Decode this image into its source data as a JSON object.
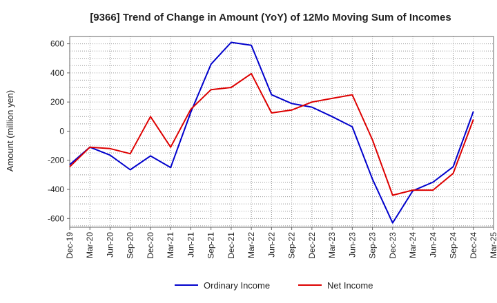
{
  "chart_data": {
    "type": "line",
    "title": "[9366]  Trend of Change in Amount (YoY) of 12Mo Moving Sum of Incomes",
    "xlabel": "",
    "ylabel": "Amount (million yen)",
    "ylim": [
      -660,
      650
    ],
    "yticks": [
      -600,
      -400,
      -200,
      0,
      200,
      400,
      600
    ],
    "categories": [
      "Dec-19",
      "Mar-20",
      "Jun-20",
      "Sep-20",
      "Dec-20",
      "Mar-21",
      "Jun-21",
      "Sep-21",
      "Dec-21",
      "Mar-22",
      "Jun-22",
      "Sep-22",
      "Dec-22",
      "Mar-23",
      "Jun-23",
      "Sep-23",
      "Dec-23",
      "Mar-24",
      "Jun-24",
      "Sep-24",
      "Dec-24",
      "Mar-25"
    ],
    "grid": true,
    "legend_position": "bottom",
    "series": [
      {
        "name": "Ordinary Income",
        "color": "#0000cc",
        "values": [
          -230,
          -110,
          -165,
          -265,
          -170,
          -250,
          130,
          460,
          610,
          590,
          250,
          190,
          165,
          100,
          30,
          -330,
          -630,
          -410,
          -350,
          -245,
          135,
          null
        ]
      },
      {
        "name": "Net Income",
        "color": "#dd0000",
        "values": [
          -245,
          -110,
          -120,
          -155,
          100,
          -110,
          150,
          285,
          300,
          395,
          125,
          145,
          200,
          225,
          250,
          -60,
          -440,
          -405,
          -405,
          -290,
          80,
          null
        ]
      }
    ]
  }
}
